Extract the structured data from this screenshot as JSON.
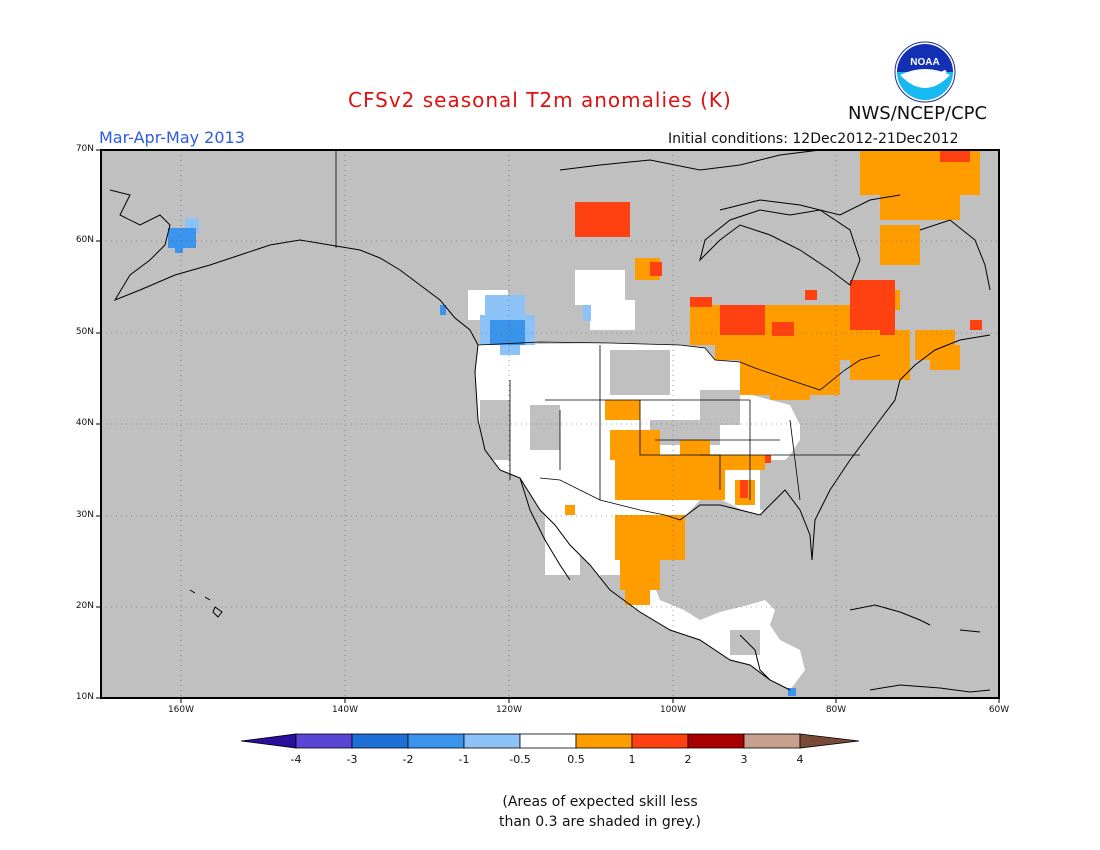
{
  "header": {
    "title": "CFSv2 seasonal T2m anomalies (K)",
    "period": "Mar-Apr-May 2013",
    "initial_conditions": "Initial conditions: 12Dec2012-21Dec2012",
    "agency": "NWS/NCEP/CPC",
    "logo_text": "NOAA"
  },
  "map": {
    "latitude_labels": [
      "70N",
      "60N",
      "50N",
      "40N",
      "30N",
      "20N",
      "10N"
    ],
    "longitude_labels": [
      "160W",
      "140W",
      "120W",
      "100W",
      "80W",
      "60W"
    ],
    "region": "North America",
    "anomaly_regions": [
      {
        "area": "Northern Quebec / Labrador",
        "category": "0.5 to 1"
      },
      {
        "area": "Hudson Bay east coast",
        "category": "1 to 2"
      },
      {
        "area": "Ontario north of Lake Superior",
        "category": "1 to 2"
      },
      {
        "area": "Great Lakes region",
        "category": "0.5 to 1"
      },
      {
        "area": "Texas / Oklahoma / Kansas",
        "category": "0.5 to 1"
      },
      {
        "area": "Northern Mexico",
        "category": "0.5 to 1"
      },
      {
        "area": "Northwest Territories",
        "category": "1 to 2"
      },
      {
        "area": "Pacific Northwest",
        "category": "-1 to -0.5"
      },
      {
        "area": "Western Alaska",
        "category": "-2 to -1"
      }
    ]
  },
  "colorbar": {
    "labels": [
      "-4",
      "-3",
      "-2",
      "-1",
      "-0.5",
      "0.5",
      "1",
      "2",
      "3",
      "4"
    ],
    "colors": [
      "#2a0f9e",
      "#5a45d6",
      "#1f6fd8",
      "#3a94ec",
      "#8cc2f6",
      "#ffffff",
      "#ff9c00",
      "#ff4010",
      "#a80000",
      "#c9a08e",
      "#7a4a38"
    ]
  },
  "note": {
    "line1": "(Areas of expected skill less",
    "line2": "than 0.3 are shaded in grey.)"
  }
}
